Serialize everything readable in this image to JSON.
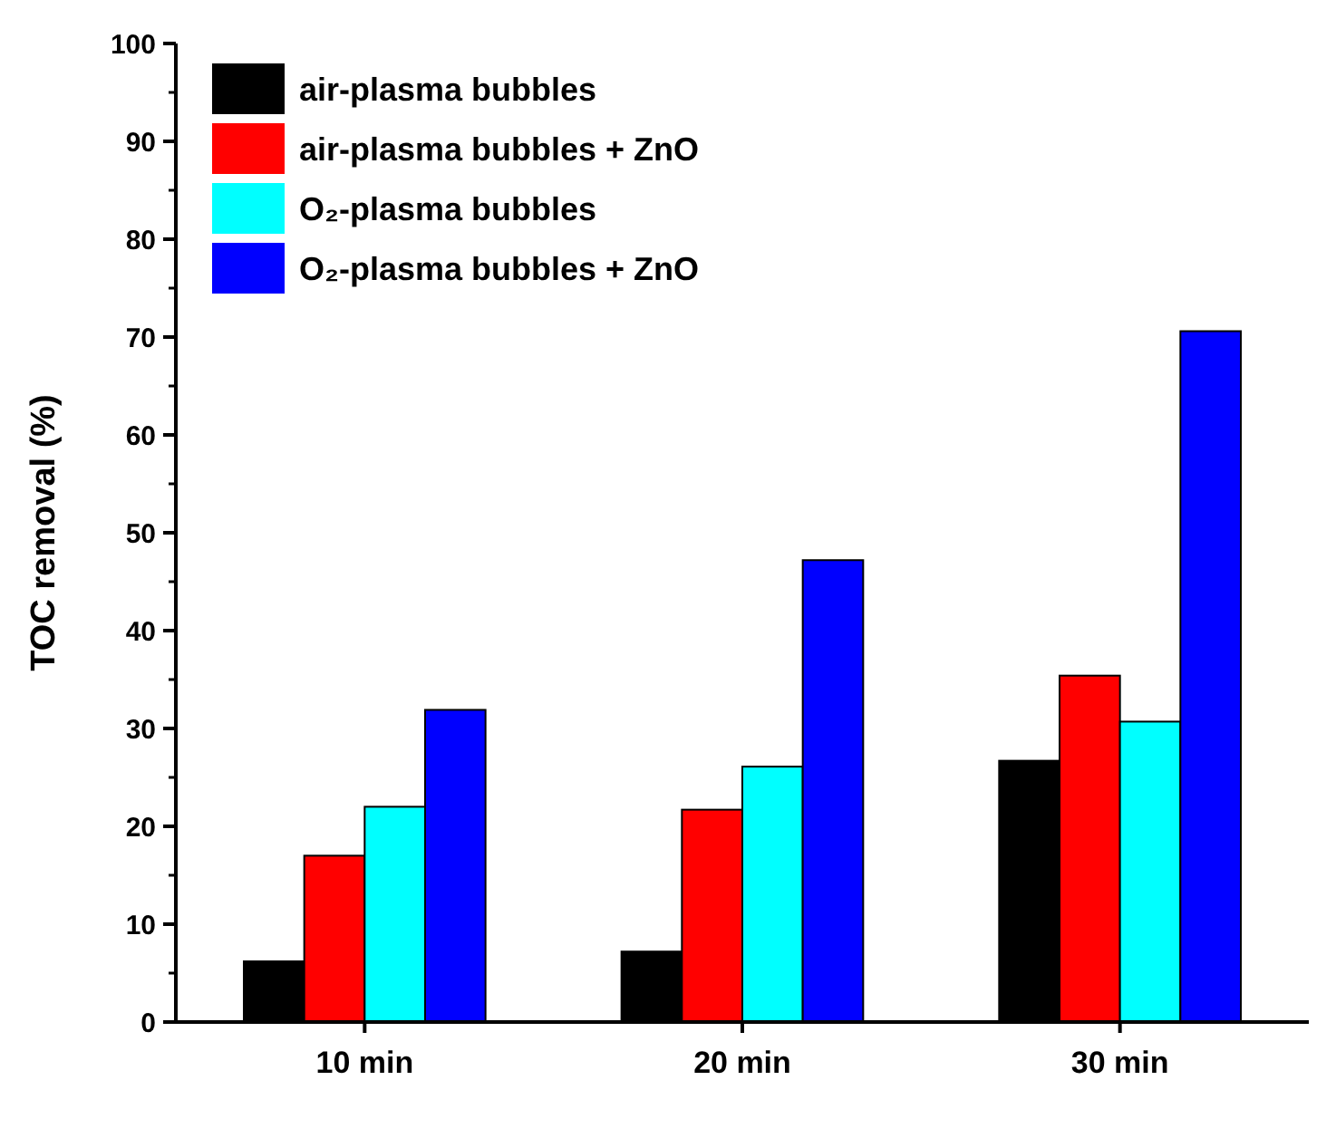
{
  "chart_data": {
    "type": "bar",
    "ylabel": "TOC removal (%)",
    "categories": [
      "10 min",
      "20 min",
      "30 min"
    ],
    "series": [
      {
        "name": "air-plasma bubbles",
        "color": "#000000",
        "values": [
          6.2,
          7.2,
          26.7
        ]
      },
      {
        "name": "air-plasma bubbles + ZnO",
        "color": "#ff0000",
        "values": [
          17.0,
          21.7,
          35.4
        ]
      },
      {
        "name": "O₂-plasma bubbles",
        "color": "#00ffff",
        "values": [
          22.0,
          26.1,
          30.7
        ]
      },
      {
        "name": "O₂-plasma bubbles + ZnO",
        "color": "#0000ff",
        "values": [
          31.9,
          47.2,
          70.6
        ]
      }
    ],
    "ylim": [
      0,
      100
    ],
    "yticks": [
      0,
      10,
      20,
      30,
      40,
      50,
      60,
      70,
      80,
      90,
      100
    ],
    "legend": "top left",
    "grid": false
  }
}
